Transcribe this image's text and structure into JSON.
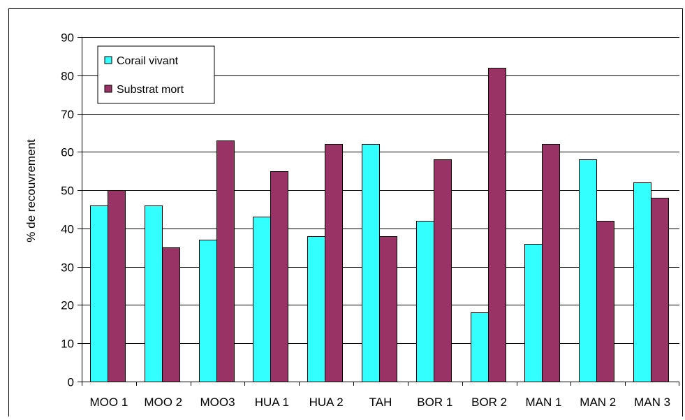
{
  "chart_data": {
    "type": "bar",
    "title": "",
    "xlabel": "",
    "ylabel": "% de recouvrement",
    "categories": [
      "MOO 1",
      "MOO 2",
      "MOO3",
      "HUA 1",
      "HUA 2",
      "TAH",
      "BOR 1",
      "BOR 2",
      "MAN 1",
      "MAN 2",
      "MAN 3"
    ],
    "series": [
      {
        "name": "Corail vivant",
        "color": "#33FFFF",
        "values": [
          46,
          46,
          37,
          43,
          38,
          62,
          42,
          18,
          36,
          58,
          52
        ]
      },
      {
        "name": "Substrat mort",
        "color": "#993366",
        "values": [
          50,
          35,
          63,
          55,
          62,
          38,
          58,
          82,
          62,
          42,
          48
        ]
      }
    ],
    "ylim": [
      0,
      90
    ],
    "yticks": [
      0,
      10,
      20,
      30,
      40,
      50,
      60,
      70,
      80,
      90
    ],
    "grid": true,
    "legend": "top-left"
  }
}
